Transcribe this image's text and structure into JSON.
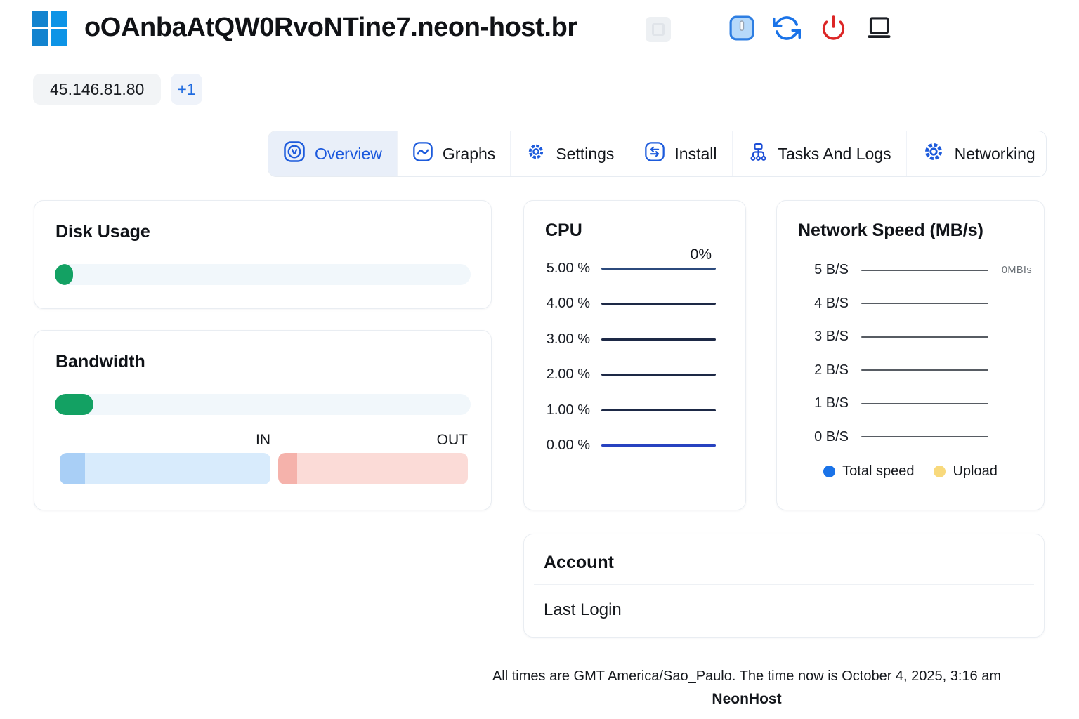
{
  "header": {
    "title": "oOAnbaAtQW0RvoNTine7.neon-host.br",
    "action_icons": [
      "server-info",
      "refresh",
      "power",
      "console"
    ]
  },
  "ip_bar": {
    "primary_ip": "45.146.81.80",
    "more_label": "+1"
  },
  "tabs": [
    {
      "label": "Overview",
      "icon": "overview-icon",
      "active": true
    },
    {
      "label": "Graphs",
      "icon": "graphs-wave-icon",
      "active": false
    },
    {
      "label": "Settings",
      "icon": "settings-gear-icon",
      "active": false
    },
    {
      "label": "Install",
      "icon": "install-transfer-icon",
      "active": false
    },
    {
      "label": "Tasks And Logs",
      "icon": "tasks-flowchart-icon",
      "active": false
    },
    {
      "label": "Networking",
      "icon": "networking-cog-icon",
      "active": false
    }
  ],
  "cards": {
    "disk": {
      "title": "Disk Usage",
      "used_percent": 4.4
    },
    "bandwidth": {
      "title": "Bandwidth",
      "used_percent": 9.3,
      "in_label": "IN",
      "out_label": "OUT",
      "in_used_percent": 12,
      "out_used_percent": 10
    },
    "account": {
      "title": "Account",
      "last_login_label": "Last Login"
    }
  },
  "chart_data": [
    {
      "type": "line",
      "title": "CPU",
      "yticks": [
        "5.00 %",
        "4.00 %",
        "3.00 %",
        "2.00 %",
        "1.00 %",
        "0.00 %"
      ],
      "ylim": [
        0,
        5
      ],
      "grid": true,
      "current_value_label": "0%",
      "series": [
        {
          "name": "CPU",
          "values": [
            0
          ]
        }
      ]
    },
    {
      "type": "line",
      "title": "Network Speed (MB/s)",
      "yticks": [
        "5 B/S",
        "4 B/S",
        "3 B/S",
        "2 B/S",
        "1 B/S",
        "0 B/S"
      ],
      "ylim": [
        0,
        5
      ],
      "grid": true,
      "current_value_label": "0MBIs",
      "legend_position": "bottom",
      "legend": [
        {
          "name": "Total speed",
          "color": "#1a73e8"
        },
        {
          "name": "Upload",
          "color": "#f8d97c"
        }
      ],
      "series": [
        {
          "name": "Total speed",
          "values": [
            0
          ]
        },
        {
          "name": "Upload",
          "values": [
            0
          ]
        }
      ]
    }
  ],
  "footer": {
    "timezone_note": "All times are GMT America/Sao_Paulo. The time now is October 4, 2025, 3:16 am",
    "brand": "NeonHost"
  },
  "colors": {
    "accent_blue": "#1c59dd",
    "progress_green": "#13a163",
    "in_fill": "#a9cff6",
    "in_track": "#d8ebfc",
    "out_fill": "#f5b2ab",
    "out_track": "#fbdbd7",
    "legend_total": "#1a73e8",
    "legend_upload": "#f8d97c",
    "power_red": "#dc2626",
    "refresh_blue": "#1a73e8"
  }
}
